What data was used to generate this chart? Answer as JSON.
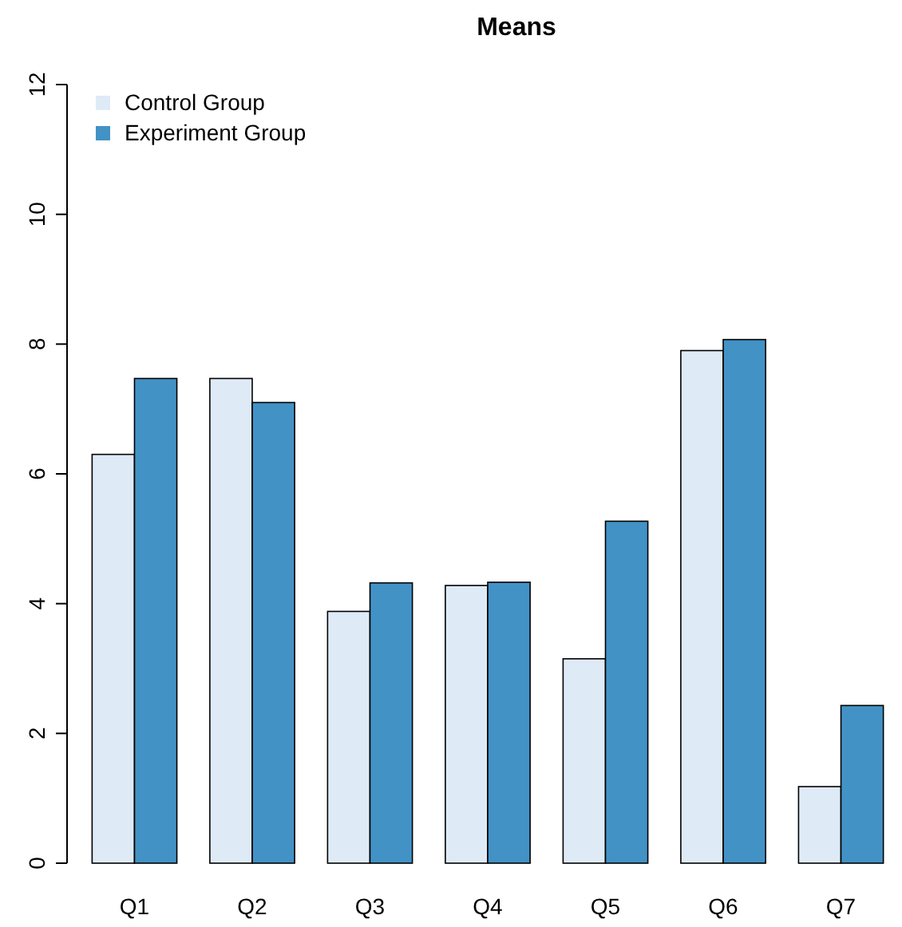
{
  "chart_data": {
    "type": "bar",
    "title": "Means",
    "categories": [
      "Q1",
      "Q2",
      "Q3",
      "Q4",
      "Q5",
      "Q6",
      "Q7"
    ],
    "series": [
      {
        "name": "Control Group",
        "color": "#deebf7",
        "values": [
          6.3,
          7.47,
          3.88,
          4.28,
          3.15,
          7.9,
          1.18
        ]
      },
      {
        "name": "Experiment Group",
        "color": "#4292c6",
        "values": [
          7.47,
          7.1,
          4.32,
          4.33,
          5.27,
          8.07,
          2.43
        ]
      }
    ],
    "ylim": [
      0,
      12
    ],
    "yticks": [
      0,
      2,
      4,
      6,
      8,
      10,
      12
    ],
    "grid": false,
    "legend": "top left"
  }
}
